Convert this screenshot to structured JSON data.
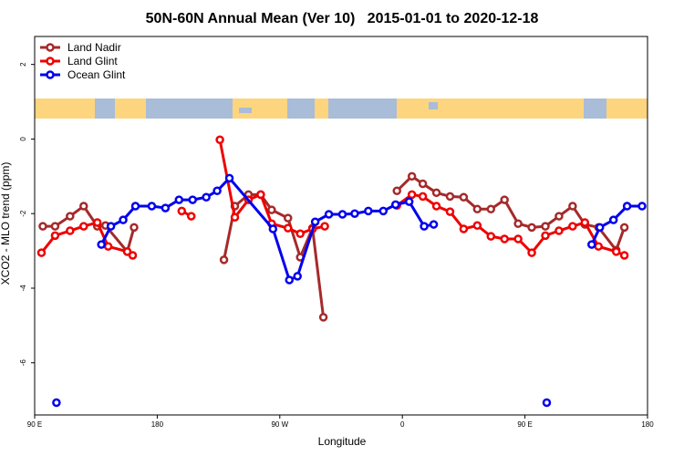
{
  "chart_data": {
    "type": "line",
    "title": "50N-60N Annual Mean (Ver 10)   2015-01-01 to 2020-12-18",
    "x_label": "Longitude",
    "y_label": "XCO2 - MLO trend (ppm)",
    "xlim": [
      90,
      540
    ],
    "ylim": [
      -7.4,
      2.75
    ],
    "xticks": [
      {
        "value": 90,
        "label": "90 E"
      },
      {
        "value": 180,
        "label": "180"
      },
      {
        "value": 270,
        "label": "90 W"
      },
      {
        "value": 360,
        "label": "0"
      },
      {
        "value": 450,
        "label": "90 E"
      },
      {
        "value": 540,
        "label": "180"
      }
    ],
    "yticks": [
      -6,
      -4,
      -2,
      0,
      2
    ],
    "legend": "top-left",
    "series": [
      {
        "name": "Land Nadir",
        "color": "#a52a2a",
        "x": [
          96,
          105,
          116,
          126,
          136,
          142,
          158,
          163,
          null,
          229,
          237,
          247,
          256,
          264,
          276,
          285,
          294,
          302,
          null,
          356,
          367,
          375,
          385,
          395,
          405,
          415,
          425,
          435,
          445,
          455,
          465,
          475,
          485,
          494,
          504,
          517,
          523
        ],
        "values": [
          -2.34,
          -2.34,
          -2.07,
          -1.8,
          -2.34,
          -2.32,
          -3.02,
          -2.37,
          null,
          -3.24,
          -1.8,
          -1.49,
          -1.49,
          -1.9,
          -2.12,
          -3.17,
          -2.39,
          -4.78,
          null,
          -1.39,
          -1.0,
          -1.2,
          -1.44,
          -1.54,
          -1.56,
          -1.88,
          -1.88,
          -1.63,
          -2.27,
          -2.37,
          -2.34,
          -2.07,
          -1.8,
          -2.29,
          -2.37,
          -2.98,
          -2.37
        ]
      },
      {
        "name": "Land Glint",
        "color": "#ee0000",
        "x": [
          95,
          105,
          116,
          126,
          136,
          144,
          158,
          162,
          null,
          198,
          205,
          null,
          226,
          237,
          247,
          256,
          264,
          276,
          285,
          294,
          303,
          null,
          356,
          367,
          375,
          385,
          395,
          405,
          415,
          425,
          435,
          445,
          455,
          465,
          475,
          485,
          494,
          504,
          517,
          523
        ],
        "values": [
          -3.05,
          -2.59,
          -2.46,
          -2.34,
          -2.24,
          -2.88,
          -3.02,
          -3.12,
          null,
          -1.93,
          -2.07,
          null,
          -0.02,
          -2.1,
          -1.63,
          -1.49,
          -2.27,
          -2.39,
          -2.54,
          -2.41,
          -2.34,
          null,
          -1.78,
          -1.49,
          -1.54,
          -1.8,
          -1.95,
          -2.41,
          -2.32,
          -2.61,
          -2.68,
          -2.68,
          -3.05,
          -2.59,
          -2.46,
          -2.34,
          -2.24,
          -2.88,
          -3.02,
          -3.12
        ]
      },
      {
        "name": "Ocean Glint",
        "color": "#0000ee",
        "x": [
          106,
          null,
          139,
          146,
          155,
          164,
          176,
          186,
          196,
          206,
          216,
          224,
          233,
          265,
          277,
          283,
          296,
          306,
          316,
          325,
          335,
          346,
          355,
          365,
          376,
          383,
          null,
          466,
          null,
          499,
          505,
          515,
          525,
          536
        ],
        "values": [
          -7.07,
          null,
          -2.83,
          -2.34,
          -2.17,
          -1.8,
          -1.8,
          -1.85,
          -1.63,
          -1.63,
          -1.56,
          -1.39,
          -1.05,
          -2.41,
          -3.78,
          -3.68,
          -2.22,
          -2.02,
          -2.02,
          -2.0,
          -1.93,
          -1.93,
          -1.76,
          -1.68,
          -2.34,
          -2.29,
          null,
          -7.07,
          null,
          -2.83,
          -2.37,
          -2.17,
          -1.8,
          -1.8
        ]
      }
    ]
  }
}
